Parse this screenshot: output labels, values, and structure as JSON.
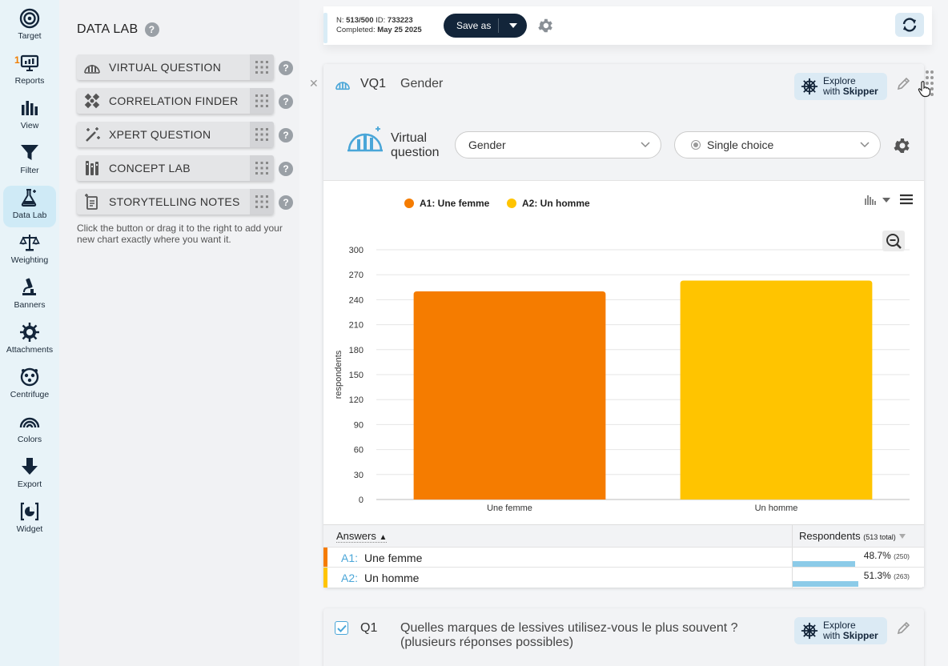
{
  "rail": [
    {
      "label": "Target",
      "icon": "target-icon"
    },
    {
      "label": "Reports",
      "icon": "reports-icon",
      "badge": "1"
    },
    {
      "label": "View",
      "icon": "view-icon"
    },
    {
      "label": "Filter",
      "icon": "filter-icon"
    },
    {
      "label": "Data Lab",
      "icon": "flask-icon",
      "active": true
    },
    {
      "label": "Weighting",
      "icon": "scale-icon"
    },
    {
      "label": "Banners",
      "icon": "microscope-icon"
    },
    {
      "label": "Attachments",
      "icon": "gear-burst-icon"
    },
    {
      "label": "Centrifuge",
      "icon": "centrifuge-icon"
    },
    {
      "label": "Colors",
      "icon": "rainbow-icon"
    },
    {
      "label": "Export",
      "icon": "export-arrow-icon"
    },
    {
      "label": "Widget",
      "icon": "widget-icon"
    }
  ],
  "panel": {
    "title": "DATA LAB",
    "help": "?",
    "tools": [
      {
        "label": "VIRTUAL QUESTION",
        "icon": "virtual-question-icon"
      },
      {
        "label": "CORRELATION FINDER",
        "icon": "correlation-icon"
      },
      {
        "label": "XPERT QUESTION",
        "icon": "magic-wand-icon"
      },
      {
        "label": "CONCEPT LAB",
        "icon": "concept-lab-icon"
      },
      {
        "label": "STORYTELLING NOTES",
        "icon": "notes-icon"
      }
    ],
    "hint": "Click the button or drag it to the right to add your new chart exactly where you want it."
  },
  "topbar": {
    "n_label": "N:",
    "n_value": "513/500",
    "id_label": "ID:",
    "id_value": "733223",
    "completed_label": "Completed:",
    "completed_value": "May 25 2025",
    "save_as": "Save as"
  },
  "card": {
    "id": "VQ1",
    "title": "Gender",
    "explore_line1": "Explore",
    "explore_with": "with",
    "explore_brand": "Skipper",
    "vq_label_line1": "Virtual",
    "vq_label_line2": "question",
    "question_select": "Gender",
    "type_select": "Single choice"
  },
  "chart_data": {
    "type": "bar",
    "categories": [
      "Une femme",
      "Un homme"
    ],
    "series": [
      {
        "name": "A1: Une femme",
        "color": "#f57c00",
        "values": [
          250,
          null
        ]
      },
      {
        "name": "A2: Un homme",
        "color": "#ffc400",
        "values": [
          null,
          263
        ]
      }
    ],
    "values": [
      250,
      263
    ],
    "colors": [
      "#f57c00",
      "#ffc400"
    ],
    "ylabel": "respondents",
    "ylim": [
      0,
      300
    ],
    "yticks": [
      0,
      30,
      60,
      90,
      120,
      150,
      180,
      210,
      240,
      270,
      300
    ],
    "legend_position": "top"
  },
  "answers": {
    "header_left": "Answers",
    "sort_arrow": "▲",
    "header_right": "Respondents",
    "header_total": "(513 total)",
    "rows": [
      {
        "code": "A1:",
        "label": "Une femme",
        "pct": "48.7%",
        "count": "(250)",
        "share": 0.487,
        "color": "#f57c00"
      },
      {
        "code": "A2:",
        "label": "Un homme",
        "pct": "51.3%",
        "count": "(263)",
        "share": 0.513,
        "color": "#ffc400"
      }
    ]
  },
  "card2": {
    "id": "Q1",
    "title_line1": "Quelles marques de lessives utilisez-vous le plus souvent ?",
    "title_line2": "(plusieurs réponses possibles)",
    "explore_line1": "Explore",
    "explore_with": "with",
    "explore_brand": "Skipper"
  }
}
